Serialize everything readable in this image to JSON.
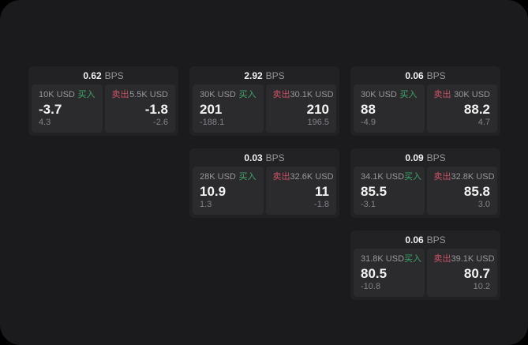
{
  "labels": {
    "bps_unit": "BPS",
    "buy": "买入",
    "sell": "卖出"
  },
  "colors": {
    "outer_bg": "#000000",
    "panel_bg": "#1b1b1d",
    "card_bg": "#222224",
    "subpanel_bg": "#2b2b2d",
    "text_white": "#f2f2f2",
    "text_gray": "#97979c",
    "text_dim": "#82828a",
    "buy_green": "#3da56a",
    "sell_red": "#c95266"
  },
  "cards": [
    {
      "bps": "0.62",
      "buy": {
        "amount": "10K USD",
        "main": "-3.7",
        "sub": "4.3"
      },
      "sell": {
        "amount": "5.5K USD",
        "main": "-1.8",
        "sub": "-2.6"
      }
    },
    {
      "bps": "2.92",
      "buy": {
        "amount": "30K USD",
        "main": "201",
        "sub": "-188.1"
      },
      "sell": {
        "amount": "30.1K USD",
        "main": "210",
        "sub": "196.5"
      }
    },
    {
      "bps": "0.06",
      "buy": {
        "amount": "30K USD",
        "main": "88",
        "sub": "-4.9"
      },
      "sell": {
        "amount": "30K USD",
        "main": "88.2",
        "sub": "4.7"
      }
    },
    {
      "bps": "0.03",
      "buy": {
        "amount": "28K USD",
        "main": "10.9",
        "sub": "1.3"
      },
      "sell": {
        "amount": "32.6K USD",
        "main": "11",
        "sub": "-1.8"
      }
    },
    {
      "bps": "0.09",
      "buy": {
        "amount": "34.1K USD",
        "main": "85.5",
        "sub": "-3.1"
      },
      "sell": {
        "amount": "32.8K USD",
        "main": "85.8",
        "sub": "3.0"
      }
    },
    {
      "bps": "0.06",
      "buy": {
        "amount": "31.8K USD",
        "main": "80.5",
        "sub": "-10.8"
      },
      "sell": {
        "amount": "39.1K USD",
        "main": "80.7",
        "sub": "10.2"
      }
    }
  ]
}
